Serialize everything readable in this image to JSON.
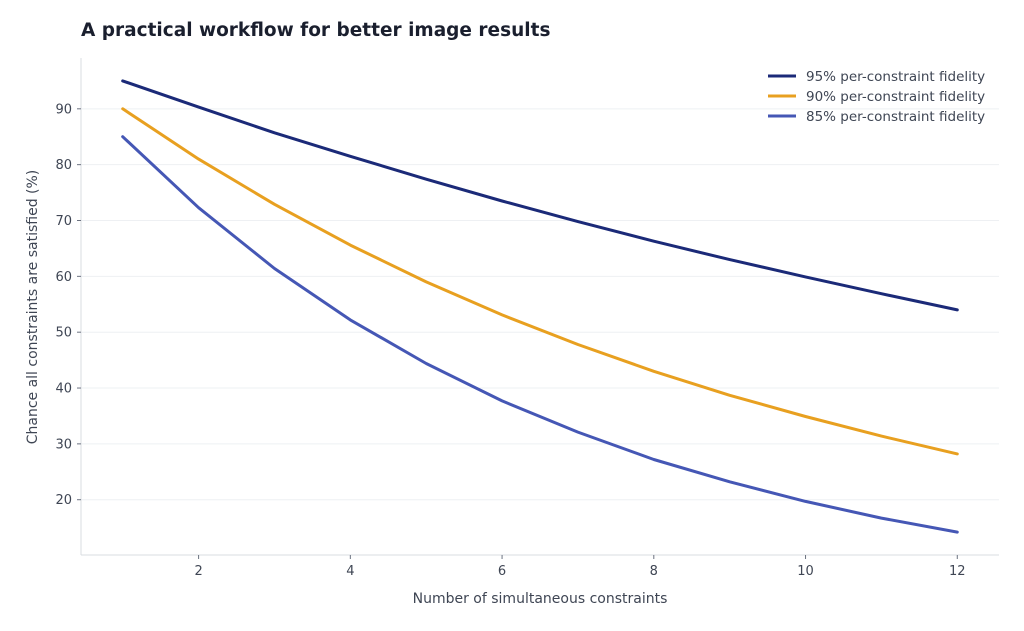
{
  "chart_data": {
    "type": "line",
    "title": "A practical workflow for better image results",
    "xlabel": "Number of simultaneous constraints",
    "ylabel": "Chance all constraints are satisfied (%)",
    "x": [
      1,
      2,
      3,
      4,
      5,
      6,
      7,
      8,
      9,
      10,
      11,
      12
    ],
    "xlim": [
      0.45,
      12.55
    ],
    "ylim": [
      10.1,
      99.1
    ],
    "xticks": [
      2,
      4,
      6,
      8,
      10,
      12
    ],
    "yticks": [
      20,
      30,
      40,
      50,
      60,
      70,
      80,
      90
    ],
    "grid": "horizontal",
    "legend_position": "top-right",
    "series": [
      {
        "name": "95% per-constraint fidelity",
        "color": "#1b2a78",
        "values": [
          95.0,
          90.3,
          85.7,
          81.5,
          77.4,
          73.5,
          69.8,
          66.3,
          63.0,
          59.9,
          56.9,
          54.0
        ]
      },
      {
        "name": "90% per-constraint fidelity",
        "color": "#e8a020",
        "values": [
          90.0,
          81.0,
          72.9,
          65.6,
          59.0,
          53.1,
          47.8,
          43.0,
          38.7,
          34.9,
          31.4,
          28.2
        ]
      },
      {
        "name": "85% per-constraint fidelity",
        "color": "#4557b5",
        "values": [
          85.0,
          72.3,
          61.4,
          52.2,
          44.4,
          37.7,
          32.1,
          27.2,
          23.2,
          19.7,
          16.7,
          14.2
        ]
      }
    ]
  }
}
